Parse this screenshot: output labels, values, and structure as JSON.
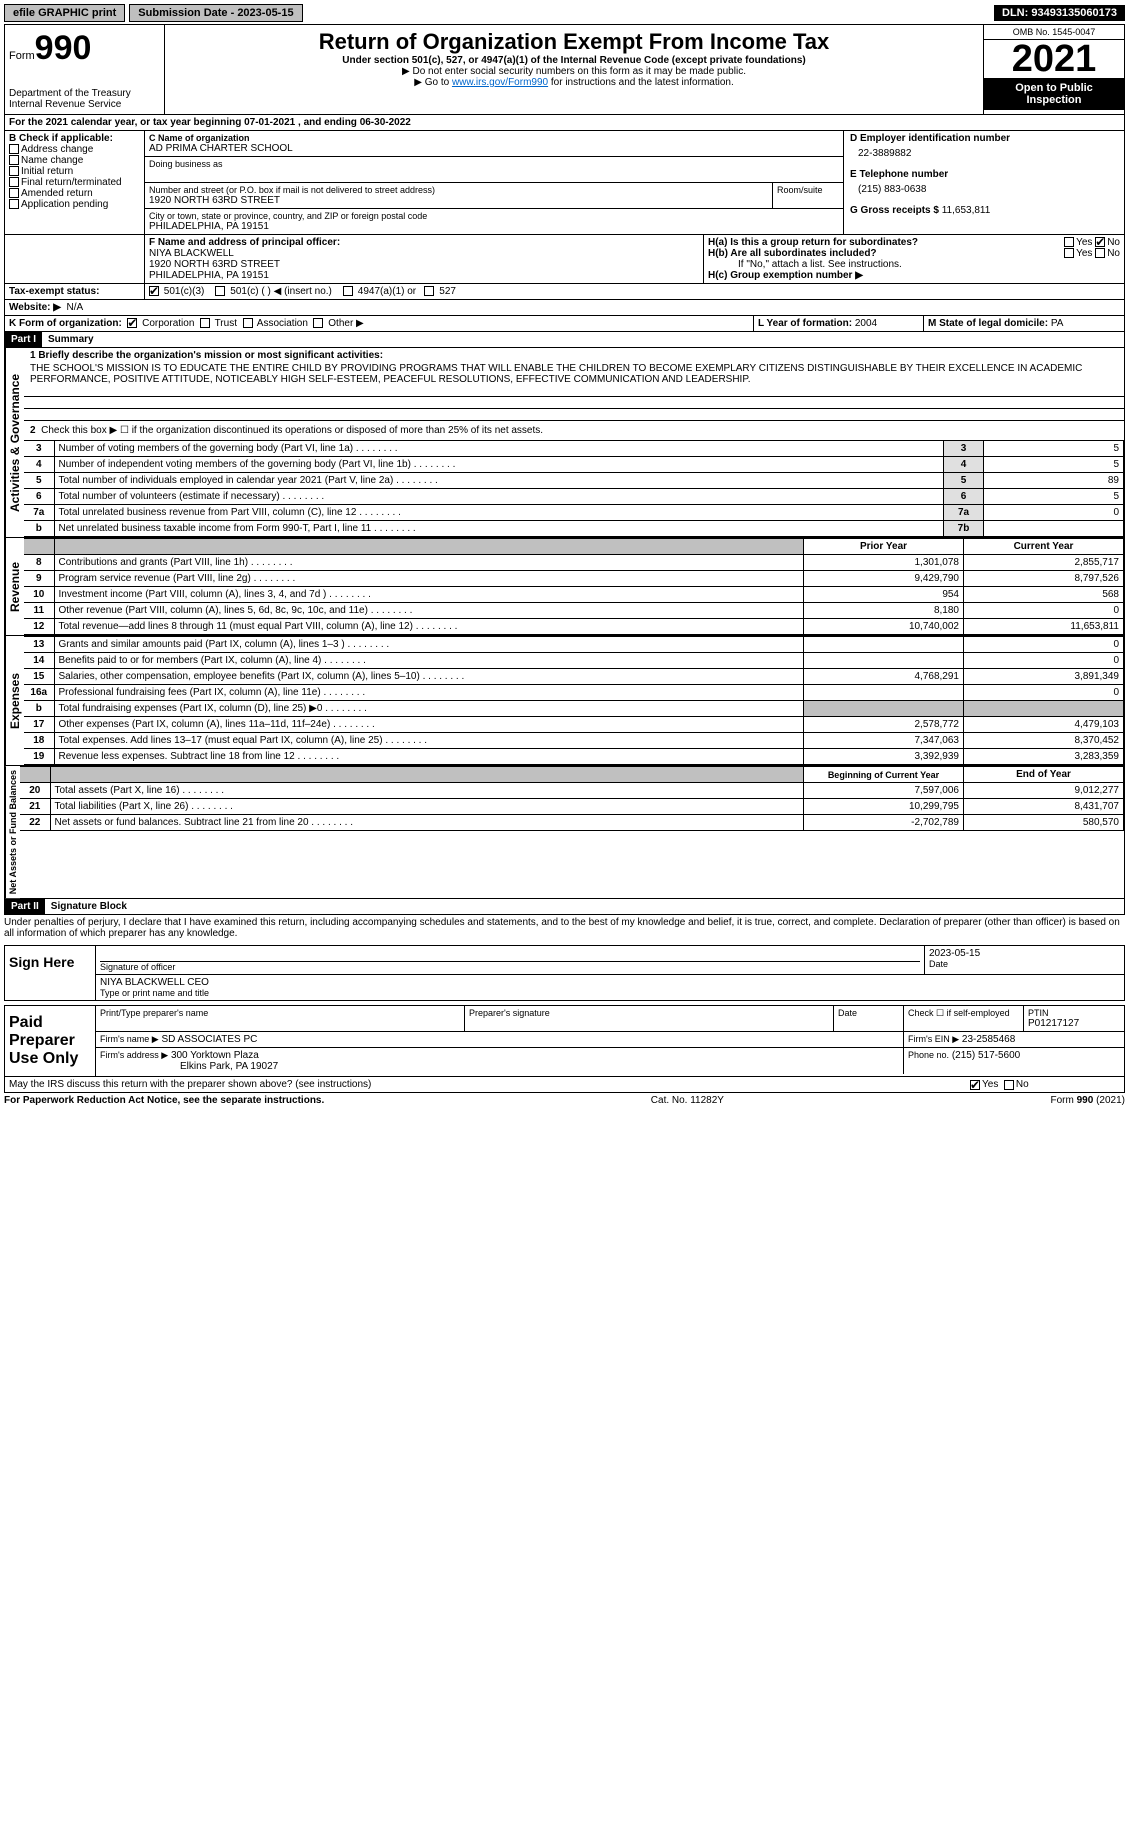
{
  "topbar": {
    "efile": "efile GRAPHIC print",
    "submission": "Submission Date - 2023-05-15",
    "dln": "DLN: 93493135060173"
  },
  "header": {
    "form_label": "Form",
    "form_number": "990",
    "title": "Return of Organization Exempt From Income Tax",
    "subtitle": "Under section 501(c), 527, or 4947(a)(1) of the Internal Revenue Code (except private foundations)",
    "note1": "▶ Do not enter social security numbers on this form as it may be made public.",
    "note2_pre": "▶ Go to ",
    "note2_link": "www.irs.gov/Form990",
    "note2_post": " for instructions and the latest information.",
    "dept": "Department of the Treasury",
    "irs": "Internal Revenue Service",
    "omb": "OMB No. 1545-0047",
    "year": "2021",
    "open_pub": "Open to Public Inspection"
  },
  "sectionA": {
    "line_a": "For the 2021 calendar year, or tax year beginning 07-01-2021    , and ending 06-30-2022",
    "b_label": "B Check if applicable:",
    "b_opts": [
      "Address change",
      "Name change",
      "Initial return",
      "Final return/terminated",
      "Amended return",
      "Application pending"
    ],
    "c_label": "C Name of organization",
    "org_name": "AD PRIMA CHARTER SCHOOL",
    "dba_label": "Doing business as",
    "street_label": "Number and street (or P.O. box if mail is not delivered to street address)",
    "room_label": "Room/suite",
    "street": "1920 NORTH 63RD STREET",
    "city_label": "City or town, state or province, country, and ZIP or foreign postal code",
    "city": "PHILADELPHIA, PA  19151",
    "d_label": "D Employer identification number",
    "ein": "22-3889882",
    "e_label": "E Telephone number",
    "phone": "(215) 883-0638",
    "g_label": "G Gross receipts $",
    "g_val": "11,653,811",
    "f_label": "F  Name and address of principal officer:",
    "officer_name": "NIYA BLACKWELL",
    "officer_addr1": "1920 NORTH 63RD STREET",
    "officer_addr2": "PHILADELPHIA, PA  19151",
    "ha_label": "H(a)  Is this a group return for subordinates?",
    "hb_label": "H(b)  Are all subordinates included?",
    "hb_note": "If \"No,\" attach a list. See instructions.",
    "hc_label": "H(c)  Group exemption number ▶",
    "yes": "Yes",
    "no": "No",
    "i_label": "Tax-exempt status:",
    "i_501c3": "501(c)(3)",
    "i_501c": "501(c) (  ) ◀ (insert no.)",
    "i_4947": "4947(a)(1) or",
    "i_527": "527",
    "j_label": "Website: ▶",
    "j_val": "N/A",
    "k_label": "K Form of organization:",
    "k_corp": "Corporation",
    "k_trust": "Trust",
    "k_assoc": "Association",
    "k_other": "Other ▶",
    "l_label": "L Year of formation:",
    "l_val": "2004",
    "m_label": "M State of legal domicile:",
    "m_val": "PA"
  },
  "part1": {
    "part_label": "Part I",
    "part_title": "Summary",
    "q1": "1 Briefly describe the organization's mission or most significant activities:",
    "mission": "THE SCHOOL'S MISSION IS TO EDUCATE THE ENTIRE CHILD BY PROVIDING PROGRAMS THAT WILL ENABLE THE CHILDREN TO BECOME EXEMPLARY CITIZENS DISTINGUISHABLE BY THEIR EXCELLENCE IN ACADEMIC PERFORMANCE, POSITIVE ATTITUDE, NOTICEABLY HIGH SELF-ESTEEM, PEACEFUL RESOLUTIONS, EFFECTIVE COMMUNICATION AND LEADERSHIP.",
    "q2": "Check this box ▶ ☐  if the organization discontinued its operations or disposed of more than 25% of its net assets.",
    "rows_gov": [
      {
        "n": "3",
        "t": "Number of voting members of the governing body (Part VI, line 1a)",
        "box": "3",
        "v": "5"
      },
      {
        "n": "4",
        "t": "Number of independent voting members of the governing body (Part VI, line 1b)",
        "box": "4",
        "v": "5"
      },
      {
        "n": "5",
        "t": "Total number of individuals employed in calendar year 2021 (Part V, line 2a)",
        "box": "5",
        "v": "89"
      },
      {
        "n": "6",
        "t": "Total number of volunteers (estimate if necessary)",
        "box": "6",
        "v": "5"
      },
      {
        "n": "7a",
        "t": "Total unrelated business revenue from Part VIII, column (C), line 12",
        "box": "7a",
        "v": "0"
      },
      {
        "n": "b",
        "t": "Net unrelated business taxable income from Form 990-T, Part I, line 11",
        "box": "7b",
        "v": ""
      }
    ],
    "col_prior": "Prior Year",
    "col_current": "Current Year",
    "rows_rev": [
      {
        "n": "8",
        "t": "Contributions and grants (Part VIII, line 1h)",
        "p": "1,301,078",
        "c": "2,855,717"
      },
      {
        "n": "9",
        "t": "Program service revenue (Part VIII, line 2g)",
        "p": "9,429,790",
        "c": "8,797,526"
      },
      {
        "n": "10",
        "t": "Investment income (Part VIII, column (A), lines 3, 4, and 7d )",
        "p": "954",
        "c": "568"
      },
      {
        "n": "11",
        "t": "Other revenue (Part VIII, column (A), lines 5, 6d, 8c, 9c, 10c, and 11e)",
        "p": "8,180",
        "c": "0"
      },
      {
        "n": "12",
        "t": "Total revenue—add lines 8 through 11 (must equal Part VIII, column (A), line 12)",
        "p": "10,740,002",
        "c": "11,653,811"
      }
    ],
    "rows_exp": [
      {
        "n": "13",
        "t": "Grants and similar amounts paid (Part IX, column (A), lines 1–3 )",
        "p": "",
        "c": "0"
      },
      {
        "n": "14",
        "t": "Benefits paid to or for members (Part IX, column (A), line 4)",
        "p": "",
        "c": "0"
      },
      {
        "n": "15",
        "t": "Salaries, other compensation, employee benefits (Part IX, column (A), lines 5–10)",
        "p": "4,768,291",
        "c": "3,891,349"
      },
      {
        "n": "16a",
        "t": "Professional fundraising fees (Part IX, column (A), line 11e)",
        "p": "",
        "c": "0"
      },
      {
        "n": "b",
        "t": "Total fundraising expenses (Part IX, column (D), line 25) ▶0",
        "p": "shaded",
        "c": "shaded"
      },
      {
        "n": "17",
        "t": "Other expenses (Part IX, column (A), lines 11a–11d, 11f–24e)",
        "p": "2,578,772",
        "c": "4,479,103"
      },
      {
        "n": "18",
        "t": "Total expenses. Add lines 13–17 (must equal Part IX, column (A), line 25)",
        "p": "7,347,063",
        "c": "8,370,452"
      },
      {
        "n": "19",
        "t": "Revenue less expenses. Subtract line 18 from line 12",
        "p": "3,392,939",
        "c": "3,283,359"
      }
    ],
    "col_begin": "Beginning of Current Year",
    "col_end": "End of Year",
    "rows_net": [
      {
        "n": "20",
        "t": "Total assets (Part X, line 16)",
        "p": "7,597,006",
        "c": "9,012,277"
      },
      {
        "n": "21",
        "t": "Total liabilities (Part X, line 26)",
        "p": "10,299,795",
        "c": "8,431,707"
      },
      {
        "n": "22",
        "t": "Net assets or fund balances. Subtract line 21 from line 20",
        "p": "-2,702,789",
        "c": "580,570"
      }
    ],
    "tab_gov": "Activities & Governance",
    "tab_rev": "Revenue",
    "tab_exp": "Expenses",
    "tab_net": "Net Assets or Fund Balances"
  },
  "part2": {
    "part_label": "Part II",
    "part_title": "Signature Block",
    "penalty": "Under penalties of perjury, I declare that I have examined this return, including accompanying schedules and statements, and to the best of my knowledge and belief, it is true, correct, and complete. Declaration of preparer (other than officer) is based on all information of which preparer has any knowledge.",
    "sign_here": "Sign Here",
    "sig_officer": "Signature of officer",
    "sig_date": "2023-05-15",
    "date_label": "Date",
    "officer": "NIYA BLACKWELL  CEO",
    "type_name": "Type or print name and title",
    "paid": "Paid Preparer Use Only",
    "prep_name_label": "Print/Type preparer's name",
    "prep_sig_label": "Preparer's signature",
    "prep_date_label": "Date",
    "check_self": "Check ☐ if self-employed",
    "ptin_label": "PTIN",
    "ptin": "P01217127",
    "firm_name_label": "Firm's name    ▶",
    "firm_name": "SD ASSOCIATES PC",
    "firm_ein_label": "Firm's EIN ▶",
    "firm_ein": "23-2585468",
    "firm_addr_label": "Firm's address ▶",
    "firm_addr1": "300 Yorktown Plaza",
    "firm_addr2": "Elkins Park, PA  19027",
    "phone_label": "Phone no.",
    "phone": "(215) 517-5600",
    "discuss": "May the IRS discuss this return with the preparer shown above? (see instructions)",
    "yes": "Yes",
    "no": "No"
  },
  "footer": {
    "left": "For Paperwork Reduction Act Notice, see the separate instructions.",
    "mid": "Cat. No. 11282Y",
    "right": "Form 990 (2021)"
  }
}
